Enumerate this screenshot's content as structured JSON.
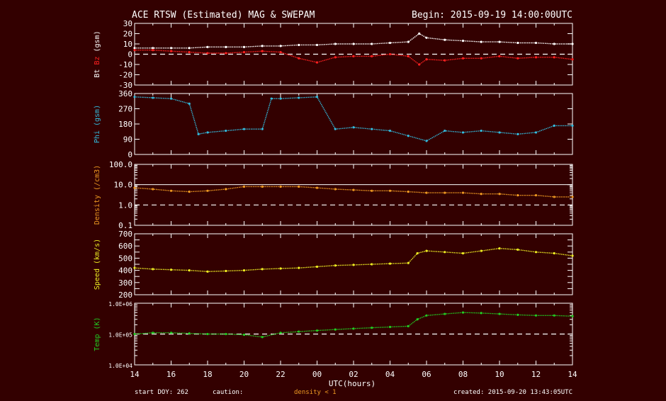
{
  "header": {
    "title": "ACE RTSW (Estimated) MAG & SWEPAM",
    "begin": "Begin: 2015-09-19 14:00:00UTC"
  },
  "footer": {
    "start_doy": "start DOY: 262",
    "caution": "caution:",
    "density_note": "density < 1",
    "created": "created: 2015-09-20 13:43:05UTC"
  },
  "colors": {
    "background": "#330000",
    "bt": "#ffffff",
    "bz": "#ff2020",
    "phi": "#33bbdd",
    "density": "#ee9922",
    "speed": "#eeee22",
    "temp": "#22cc22"
  },
  "chart_data": [
    {
      "type": "scatter",
      "ylabel_parts": [
        "Bt",
        "Bz",
        "(gsm)"
      ],
      "ylim": [
        -30,
        30
      ],
      "yticks": [
        -30,
        -20,
        -10,
        0,
        10,
        20,
        30
      ],
      "ytick_labels": [
        "-30",
        "-20",
        "-10",
        "0",
        "10",
        "20",
        "30"
      ],
      "dashed_line": 0,
      "series": [
        {
          "name": "Bt",
          "x": [
            0,
            1,
            2,
            3,
            4,
            5,
            6,
            7,
            8,
            9,
            10,
            11,
            12,
            13,
            14,
            15,
            15.6,
            16,
            17,
            18,
            19,
            20,
            21,
            22,
            23,
            24
          ],
          "y": [
            6,
            6,
            6,
            6,
            7,
            7,
            7,
            8,
            8,
            9,
            9,
            10,
            10,
            10,
            11,
            12,
            20,
            16,
            14,
            13,
            12,
            12,
            11,
            11,
            10,
            10
          ]
        },
        {
          "name": "Bz",
          "x": [
            0,
            1,
            2,
            3,
            4,
            5,
            6,
            7,
            8,
            9,
            10,
            11,
            12,
            13,
            14,
            15,
            15.6,
            16,
            17,
            18,
            19,
            20,
            21,
            22,
            23,
            24
          ],
          "y": [
            4,
            4,
            3,
            2,
            1,
            1,
            2,
            3,
            2,
            -4,
            -8,
            -3,
            -2,
            -2,
            0,
            -2,
            -10,
            -5,
            -6,
            -4,
            -4,
            -2,
            -4,
            -3,
            -3,
            -5
          ]
        }
      ]
    },
    {
      "type": "scatter",
      "ylabel_parts": [
        "Phi",
        "(gsm)"
      ],
      "ylim": [
        0,
        360
      ],
      "yticks": [
        0,
        90,
        180,
        270,
        360
      ],
      "ytick_labels": [
        "0",
        "90",
        "180",
        "270",
        "360"
      ],
      "series": [
        {
          "name": "Phi",
          "x": [
            0,
            1,
            2,
            3,
            3.5,
            4,
            5,
            6,
            7,
            7.5,
            8,
            9,
            10,
            11,
            12,
            13,
            14,
            15,
            16,
            17,
            18,
            19,
            20,
            21,
            22,
            23,
            24
          ],
          "y": [
            340,
            335,
            330,
            300,
            120,
            130,
            140,
            150,
            150,
            330,
            330,
            335,
            340,
            150,
            160,
            150,
            140,
            110,
            80,
            140,
            130,
            140,
            130,
            120,
            130,
            170,
            170
          ]
        }
      ]
    },
    {
      "type": "scatter",
      "ylabel_parts": [
        "Density",
        "(/cm3)"
      ],
      "yscale": "log",
      "ylim": [
        0.1,
        100
      ],
      "yticks": [
        0.1,
        1,
        10,
        100
      ],
      "ytick_labels": [
        "0.1",
        "1.0",
        "10.0",
        "100.0"
      ],
      "solid_line": 10,
      "dashed_line": 1,
      "series": [
        {
          "name": "Density",
          "x": [
            0,
            1,
            2,
            3,
            4,
            5,
            6,
            7,
            8,
            9,
            10,
            11,
            12,
            13,
            14,
            15,
            16,
            17,
            18,
            19,
            20,
            21,
            22,
            23,
            24
          ],
          "y": [
            7,
            6,
            5,
            4.5,
            5,
            6,
            8,
            8,
            8,
            8,
            7,
            6,
            5.5,
            5,
            5,
            4.5,
            4,
            4,
            4,
            3.5,
            3.5,
            3,
            3,
            2.5,
            2.5
          ]
        }
      ]
    },
    {
      "type": "scatter",
      "ylabel_parts": [
        "Speed",
        "(km/s)"
      ],
      "ylim": [
        200,
        700
      ],
      "yticks": [
        200,
        250,
        300,
        350,
        400,
        450,
        500,
        550,
        600,
        650,
        700
      ],
      "ytick_labels": [
        "200",
        "",
        "300",
        "",
        "400",
        "",
        "500",
        "",
        "600",
        "",
        "700"
      ],
      "series": [
        {
          "name": "Speed",
          "x": [
            0,
            1,
            2,
            3,
            4,
            5,
            6,
            7,
            8,
            9,
            10,
            11,
            12,
            13,
            14,
            15,
            15.5,
            16,
            17,
            18,
            19,
            20,
            21,
            22,
            23,
            24
          ],
          "y": [
            420,
            410,
            405,
            400,
            390,
            395,
            400,
            410,
            415,
            420,
            430,
            440,
            445,
            450,
            455,
            460,
            540,
            560,
            550,
            540,
            560,
            580,
            570,
            550,
            540,
            520
          ]
        }
      ]
    },
    {
      "type": "scatter",
      "ylabel_parts": [
        "Temp",
        "(K)"
      ],
      "yscale": "log",
      "ylim": [
        10000,
        1000000
      ],
      "yticks": [
        10000,
        100000,
        1000000
      ],
      "ytick_labels": [
        "1.0E+04",
        "1.0E+05",
        "1.0E+06"
      ],
      "dashed_line": 100000,
      "series": [
        {
          "name": "Temp",
          "x": [
            0,
            1,
            2,
            3,
            4,
            5,
            6,
            7,
            8,
            9,
            10,
            11,
            12,
            13,
            14,
            15,
            15.5,
            16,
            17,
            18,
            19,
            20,
            21,
            22,
            23,
            24
          ],
          "y": [
            100000,
            110000,
            110000,
            105000,
            100000,
            100000,
            95000,
            80000,
            110000,
            120000,
            130000,
            140000,
            150000,
            160000,
            170000,
            180000,
            300000,
            400000,
            450000,
            500000,
            480000,
            450000,
            420000,
            400000,
            400000,
            380000
          ]
        }
      ]
    }
  ],
  "x_axis": {
    "label": "UTC(hours)",
    "ticks": [
      "14",
      "16",
      "18",
      "20",
      "22",
      "00",
      "02",
      "04",
      "06",
      "08",
      "10",
      "12",
      "14"
    ],
    "range_hours": [
      0,
      24
    ]
  }
}
